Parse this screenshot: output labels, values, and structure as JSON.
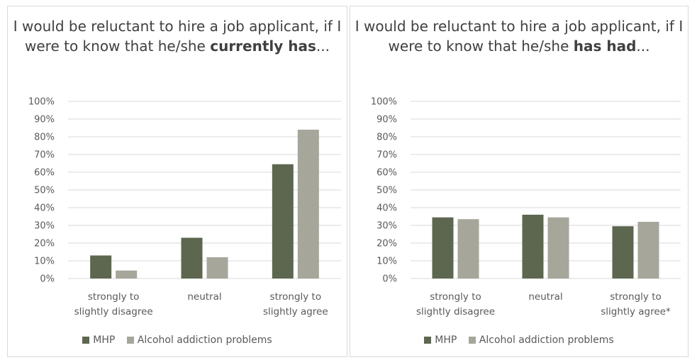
{
  "colors": {
    "mhp": "#5d6750",
    "alcohol": "#a6a69b",
    "grid": "#d9d9d9",
    "text": "#595959"
  },
  "chart_data": [
    {
      "type": "bar",
      "title": {
        "prefix": "I would be reluctant to hire a job applicant, if I were to know that he/she ",
        "bold": "currently has",
        "suffix": "..."
      },
      "categories": [
        {
          "line1": "strongly to",
          "line2": "slightly disagree"
        },
        {
          "line1": "neutral",
          "line2": ""
        },
        {
          "line1": "strongly to",
          "line2": "slightly agree"
        }
      ],
      "series": [
        {
          "name": "MHP",
          "values": [
            13,
            23,
            64.5
          ]
        },
        {
          "name": "Alcohol addiction problems",
          "values": [
            4.5,
            12,
            84
          ]
        }
      ],
      "ylim": [
        0,
        100
      ],
      "yticks": [
        "0%",
        "10%",
        "20%",
        "30%",
        "40%",
        "50%",
        "60%",
        "70%",
        "80%",
        "90%",
        "100%"
      ],
      "grid": true,
      "legend": "bottom"
    },
    {
      "type": "bar",
      "title": {
        "prefix": "I would be reluctant to hire a job applicant, if I were to know that he/she ",
        "bold": "has had",
        "suffix": "..."
      },
      "categories": [
        {
          "line1": "strongly to",
          "line2": "slightly disagree"
        },
        {
          "line1": "neutral",
          "line2": ""
        },
        {
          "line1": "strongly to",
          "line2": "slightly agree*"
        }
      ],
      "series": [
        {
          "name": "MHP",
          "values": [
            34.5,
            36,
            29.5
          ]
        },
        {
          "name": "Alcohol addiction problems",
          "values": [
            33.5,
            34.5,
            32
          ]
        }
      ],
      "ylim": [
        0,
        100
      ],
      "yticks": [
        "0%",
        "10%",
        "20%",
        "30%",
        "40%",
        "50%",
        "60%",
        "70%",
        "80%",
        "90%",
        "100%"
      ],
      "grid": true,
      "legend": "bottom"
    }
  ]
}
